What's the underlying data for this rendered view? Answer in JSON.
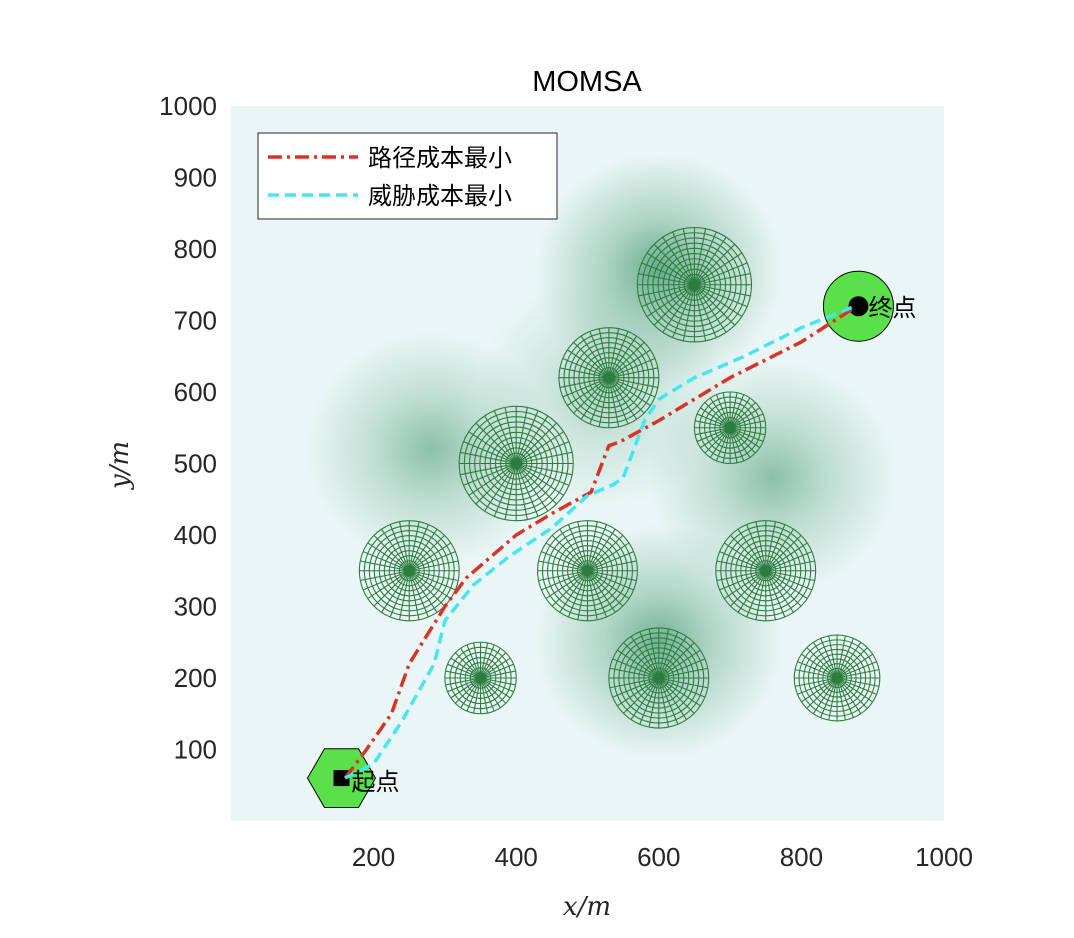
{
  "chart_data": {
    "type": "line",
    "title": "MOMSA",
    "xlabel": "x/m",
    "ylabel": "y/m",
    "xlim": [
      0,
      1000
    ],
    "ylim": [
      0,
      1000
    ],
    "xticks": [
      200,
      400,
      600,
      800,
      1000
    ],
    "yticks": [
      100,
      200,
      300,
      400,
      500,
      600,
      700,
      800,
      900,
      1000
    ],
    "grid": false,
    "legend_position": "top-left",
    "series": [
      {
        "name": "路径成本最小",
        "color": "#d93326",
        "style": "dash-dot",
        "x": [
          160,
          190,
          225,
          250,
          300,
          330,
          400,
          450,
          505,
          530,
          545,
          600,
          700,
          800,
          870
        ],
        "y": [
          60,
          100,
          150,
          220,
          300,
          340,
          400,
          430,
          460,
          525,
          530,
          560,
          620,
          670,
          715
        ]
      },
      {
        "name": "威胁成本最小",
        "color": "#45e6f0",
        "style": "dash",
        "x": [
          160,
          200,
          240,
          285,
          300,
          340,
          390,
          450,
          500,
          535,
          550,
          580,
          600,
          650,
          720,
          800,
          875
        ],
        "y": [
          60,
          80,
          140,
          220,
          280,
          330,
          370,
          410,
          455,
          470,
          480,
          560,
          590,
          620,
          650,
          690,
          720
        ]
      }
    ],
    "threats": [
      {
        "x": 650,
        "y": 750,
        "r": 80
      },
      {
        "x": 530,
        "y": 620,
        "r": 70
      },
      {
        "x": 700,
        "y": 550,
        "r": 50
      },
      {
        "x": 400,
        "y": 500,
        "r": 80
      },
      {
        "x": 250,
        "y": 350,
        "r": 70
      },
      {
        "x": 500,
        "y": 350,
        "r": 70
      },
      {
        "x": 750,
        "y": 350,
        "r": 70
      },
      {
        "x": 350,
        "y": 200,
        "r": 50
      },
      {
        "x": 600,
        "y": 200,
        "r": 70
      },
      {
        "x": 850,
        "y": 200,
        "r": 60
      }
    ],
    "threat_color": "#2e7d40",
    "start": {
      "x": 155,
      "y": 60,
      "label": "起点",
      "marker": "hexagon",
      "color": "#5ae04a"
    },
    "end": {
      "x": 880,
      "y": 720,
      "label": "终点",
      "marker": "circle",
      "color": "#5ae04a"
    },
    "background_color": "#eaf6f6",
    "shading_color": "#3e9468",
    "shading_centers": [
      {
        "x": 600,
        "y": 770,
        "strength": 0.75
      },
      {
        "x": 600,
        "y": 250,
        "strength": 0.7
      },
      {
        "x": 280,
        "y": 520,
        "strength": 0.55
      },
      {
        "x": 760,
        "y": 480,
        "strength": 0.55
      },
      {
        "x": 520,
        "y": 600,
        "strength": 0.35
      }
    ]
  }
}
